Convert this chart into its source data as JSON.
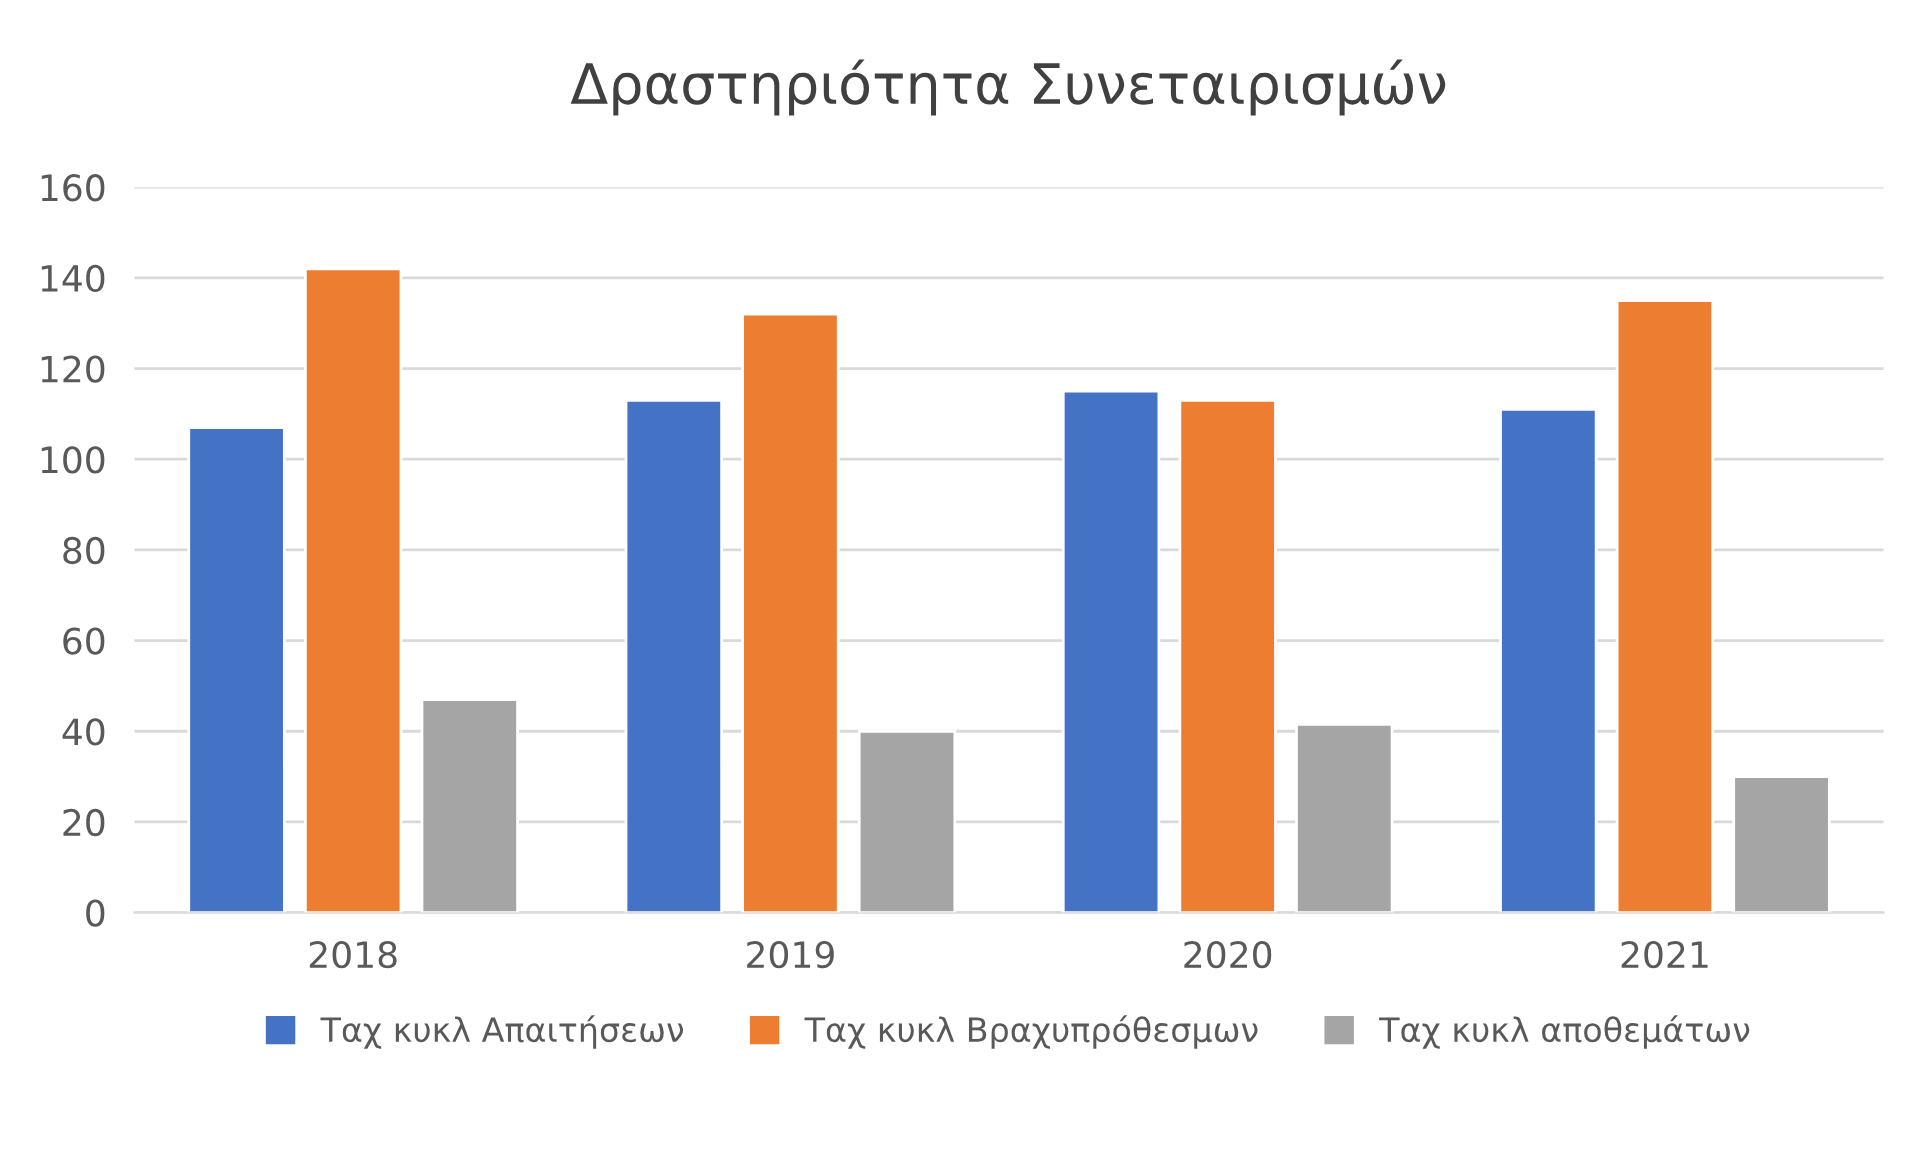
{
  "chart_data": {
    "type": "bar",
    "title": "Δραστηριότητα Συνεταιρισμών",
    "categories": [
      "2018",
      "2019",
      "2020",
      "2021"
    ],
    "series": [
      {
        "name": "Ταχ κυκλ Απαιτήσεων",
        "color": "#4472c4",
        "values": [
          107,
          113,
          115,
          111
        ]
      },
      {
        "name": "Ταχ κυκλ Βραχυπρόθεσμων",
        "color": "#ed7d31",
        "values": [
          142,
          132,
          113,
          135
        ]
      },
      {
        "name": "Ταχ κυκλ αποθεμάτων",
        "color": "#a5a5a5",
        "values": [
          47,
          40,
          41.5,
          30
        ]
      }
    ],
    "ylim": [
      0,
      160
    ],
    "yticks": [
      0,
      20,
      40,
      60,
      80,
      100,
      120,
      140,
      160
    ],
    "grid": "y",
    "legend": "bottom"
  }
}
